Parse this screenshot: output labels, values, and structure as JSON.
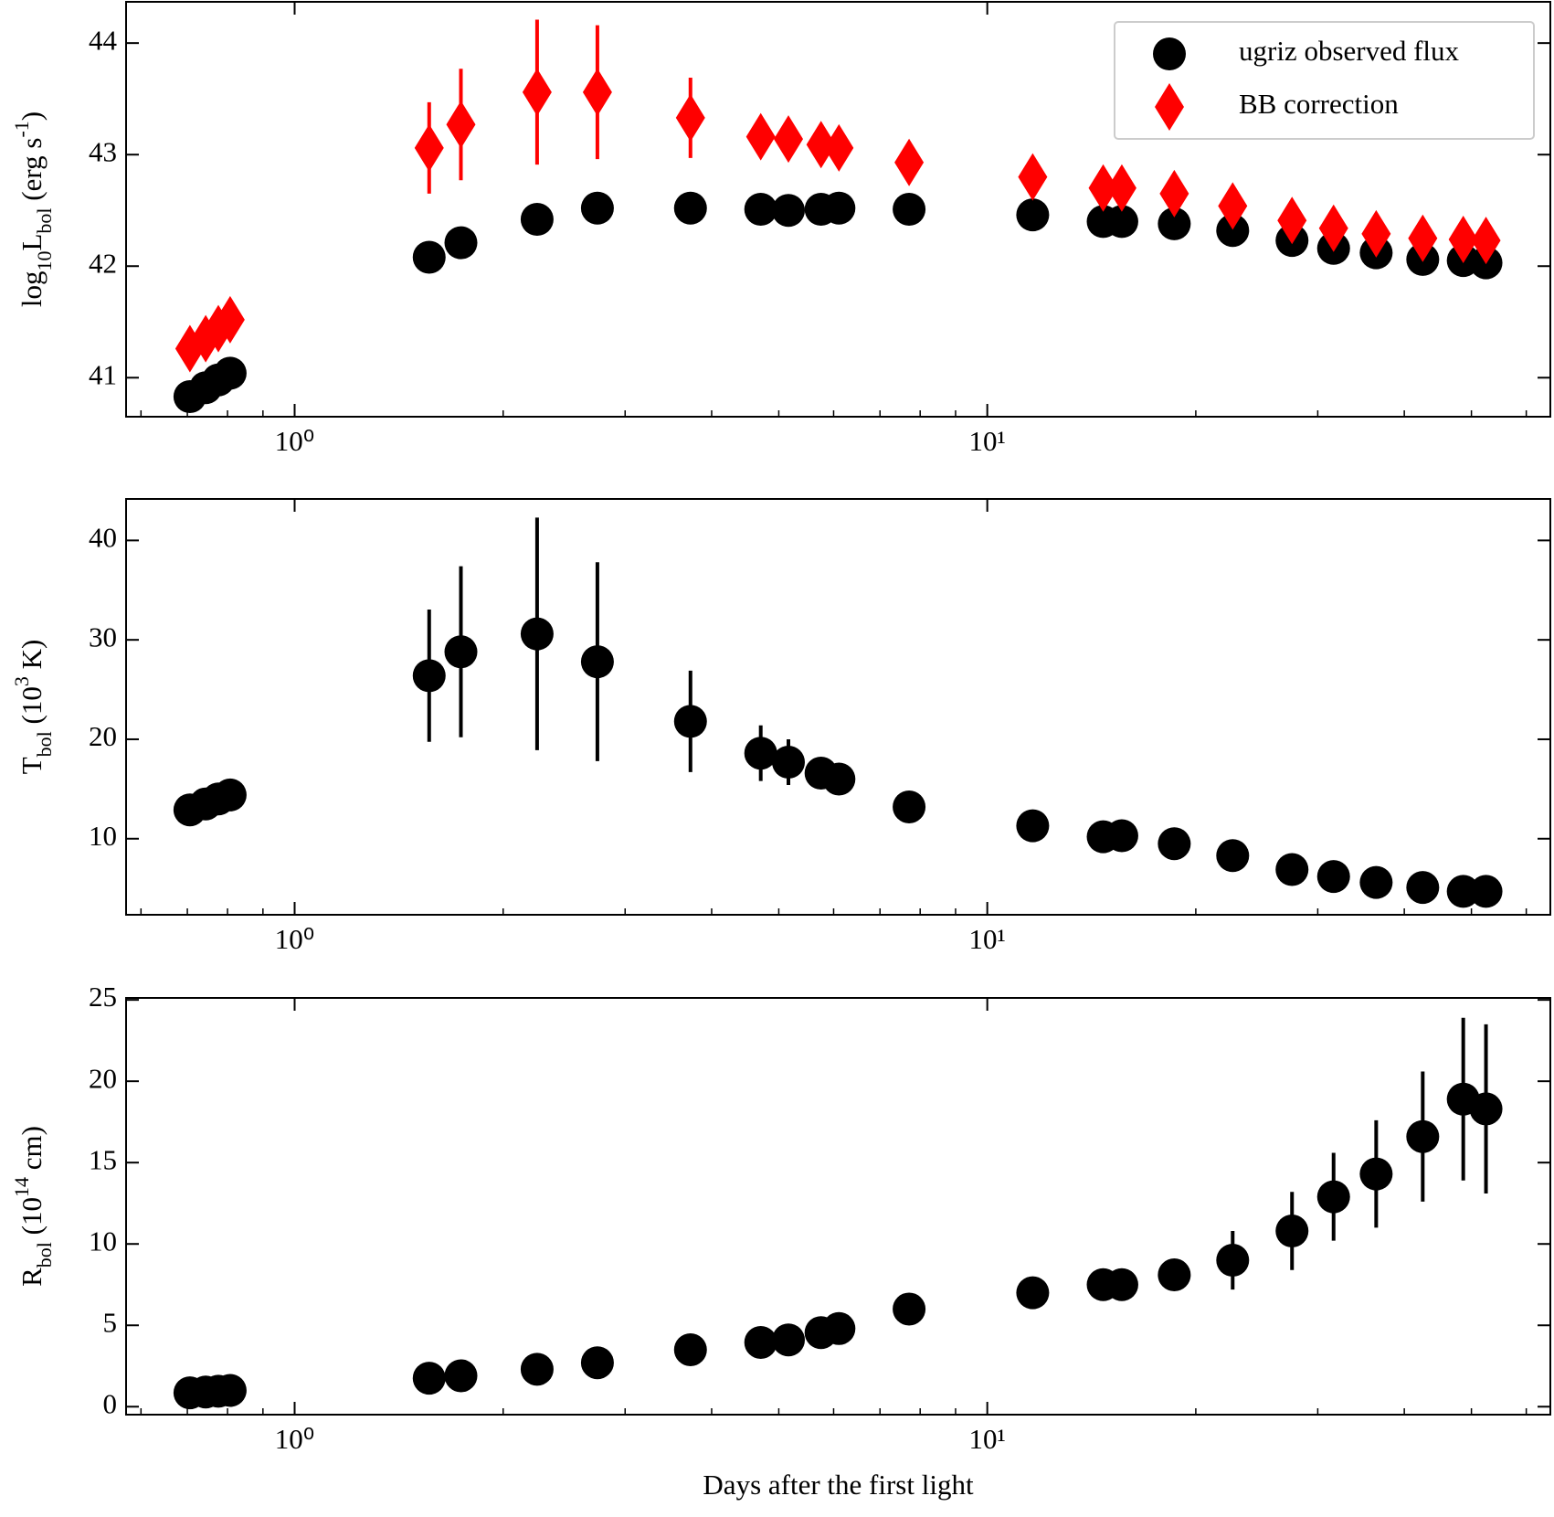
{
  "chart_data": [
    {
      "type": "scatter",
      "xscale": "log",
      "xlim": [
        0.571,
        65
      ],
      "ylim": [
        40.65,
        44.37
      ],
      "xticks": [
        {
          "value": 1,
          "label": "10⁰"
        },
        {
          "value": 10,
          "label": "10¹"
        }
      ],
      "xminorticks": [
        0.6,
        0.7,
        0.8,
        0.9,
        2,
        3,
        4,
        5,
        6,
        7,
        8,
        9,
        20,
        30,
        40,
        50,
        60
      ],
      "yticks": [
        41,
        42,
        43,
        44
      ],
      "ylabel": [
        {
          "text": "log"
        },
        {
          "text": "10",
          "shift": "sub"
        },
        {
          "text": "L"
        },
        {
          "text": "bol",
          "shift": "sub"
        },
        {
          "text": " (erg s"
        },
        {
          "text": "-1",
          "shift": "super"
        },
        {
          "text": ")"
        }
      ],
      "legend": "upper right",
      "x": [
        0.706,
        0.744,
        0.776,
        0.807,
        1.564,
        1.738,
        2.239,
        2.736,
        3.728,
        4.709,
        5.163,
        5.754,
        6.107,
        7.711,
        11.63,
        14.7,
        15.64,
        18.62,
        22.61,
        27.54,
        31.62,
        36.43,
        42.53,
        48.66,
        52.48
      ],
      "series": [
        {
          "name": "ugriz observed flux",
          "color": "#000000",
          "marker": "circle",
          "values": [
            40.83,
            40.91,
            40.98,
            41.04,
            42.08,
            42.21,
            42.42,
            42.52,
            42.52,
            42.51,
            42.5,
            42.51,
            42.52,
            42.51,
            42.46,
            42.4,
            42.4,
            42.38,
            42.32,
            42.23,
            42.16,
            42.12,
            42.06,
            42.05,
            42.03
          ]
        },
        {
          "name": "BB correction",
          "color": "#ff0000",
          "marker": "diamond",
          "values": [
            41.26,
            41.35,
            41.44,
            41.52,
            43.06,
            43.27,
            43.56,
            43.56,
            43.33,
            43.16,
            43.14,
            43.09,
            43.06,
            42.93,
            42.8,
            42.7,
            42.7,
            42.65,
            42.54,
            42.41,
            42.34,
            42.29,
            42.25,
            42.24,
            42.23
          ],
          "errors": [
            0.05,
            0.05,
            0.05,
            0.05,
            0.41,
            0.5,
            0.65,
            0.6,
            0.36,
            0.1,
            0.07,
            0.05,
            0.05,
            0.04,
            0.04,
            0.04,
            0.04,
            0.04,
            0.03,
            0.03,
            0.03,
            0.03,
            0.03,
            0.03,
            0.03
          ]
        }
      ]
    },
    {
      "type": "scatter",
      "xscale": "log",
      "xlim": [
        0.571,
        65
      ],
      "ylim": [
        2.35,
        44.17
      ],
      "xticks": [
        {
          "value": 1,
          "label": "10⁰"
        },
        {
          "value": 10,
          "label": "10¹"
        }
      ],
      "xminorticks": [
        0.6,
        0.7,
        0.8,
        0.9,
        2,
        3,
        4,
        5,
        6,
        7,
        8,
        9,
        20,
        30,
        40,
        50,
        60
      ],
      "yticks": [
        10,
        20,
        30,
        40
      ],
      "ylabel": [
        {
          "text": "T"
        },
        {
          "text": "bol",
          "shift": "sub"
        },
        {
          "text": " (10"
        },
        {
          "text": "3",
          "shift": "super"
        },
        {
          "text": " K)"
        }
      ],
      "x": [
        0.706,
        0.744,
        0.776,
        0.807,
        1.564,
        1.738,
        2.239,
        2.736,
        3.728,
        4.709,
        5.163,
        5.754,
        6.107,
        7.711,
        11.63,
        14.7,
        15.64,
        18.62,
        22.61,
        27.54,
        31.62,
        36.43,
        42.53,
        48.66,
        52.48
      ],
      "series": [
        {
          "color": "#000000",
          "marker": "circle",
          "values": [
            12.9,
            13.5,
            14.0,
            14.4,
            26.4,
            28.8,
            30.6,
            27.8,
            21.8,
            18.6,
            17.7,
            16.6,
            16.0,
            13.2,
            11.3,
            10.2,
            10.3,
            9.5,
            8.3,
            6.9,
            6.2,
            5.6,
            5.1,
            4.7,
            4.7
          ],
          "errors": [
            0.3,
            0.3,
            0.3,
            0.3,
            6.65,
            8.6,
            11.7,
            10,
            5.1,
            2.8,
            2.3,
            1.0,
            0.5,
            0.3,
            0.3,
            0.3,
            0.3,
            0.3,
            0.3,
            0.3,
            0.3,
            0.3,
            0.3,
            0.3,
            0.3
          ]
        }
      ]
    },
    {
      "type": "scatter",
      "xscale": "log",
      "xlim": [
        0.571,
        65
      ],
      "ylim": [
        -0.49,
        25.12
      ],
      "xticks": [
        {
          "value": 1,
          "label": "10⁰"
        },
        {
          "value": 10,
          "label": "10¹"
        }
      ],
      "xminorticks": [
        0.6,
        0.7,
        0.8,
        0.9,
        2,
        3,
        4,
        5,
        6,
        7,
        8,
        9,
        20,
        30,
        40,
        50,
        60
      ],
      "yticks": [
        0,
        5,
        10,
        15,
        20,
        25
      ],
      "ylabel": [
        {
          "text": "R"
        },
        {
          "text": "bol",
          "shift": "sub"
        },
        {
          "text": " (10"
        },
        {
          "text": "14",
          "shift": "super"
        },
        {
          "text": " cm)"
        }
      ],
      "xlabel": "Days after the first light",
      "x": [
        0.706,
        0.744,
        0.776,
        0.807,
        1.564,
        1.738,
        2.239,
        2.736,
        3.728,
        4.709,
        5.163,
        5.754,
        6.107,
        7.711,
        11.63,
        14.7,
        15.64,
        18.62,
        22.61,
        27.54,
        31.62,
        36.43,
        42.53,
        48.66,
        52.48
      ],
      "series": [
        {
          "color": "#000000",
          "marker": "circle",
          "values": [
            0.85,
            0.9,
            0.95,
            1.0,
            1.75,
            1.9,
            2.3,
            2.7,
            3.5,
            3.95,
            4.1,
            4.55,
            4.8,
            6.0,
            7.0,
            7.5,
            7.5,
            8.1,
            9.0,
            10.8,
            12.9,
            14.3,
            16.6,
            18.9,
            18.3
          ],
          "errors": [
            0.2,
            0.2,
            0.2,
            0.2,
            0.2,
            0.2,
            0.2,
            0.2,
            0.2,
            0.3,
            0.3,
            0.3,
            0.3,
            0.3,
            0.3,
            0.3,
            0.3,
            0.8,
            1.8,
            2.4,
            2.7,
            3.3,
            4.0,
            5.0,
            5.2
          ]
        }
      ]
    }
  ]
}
